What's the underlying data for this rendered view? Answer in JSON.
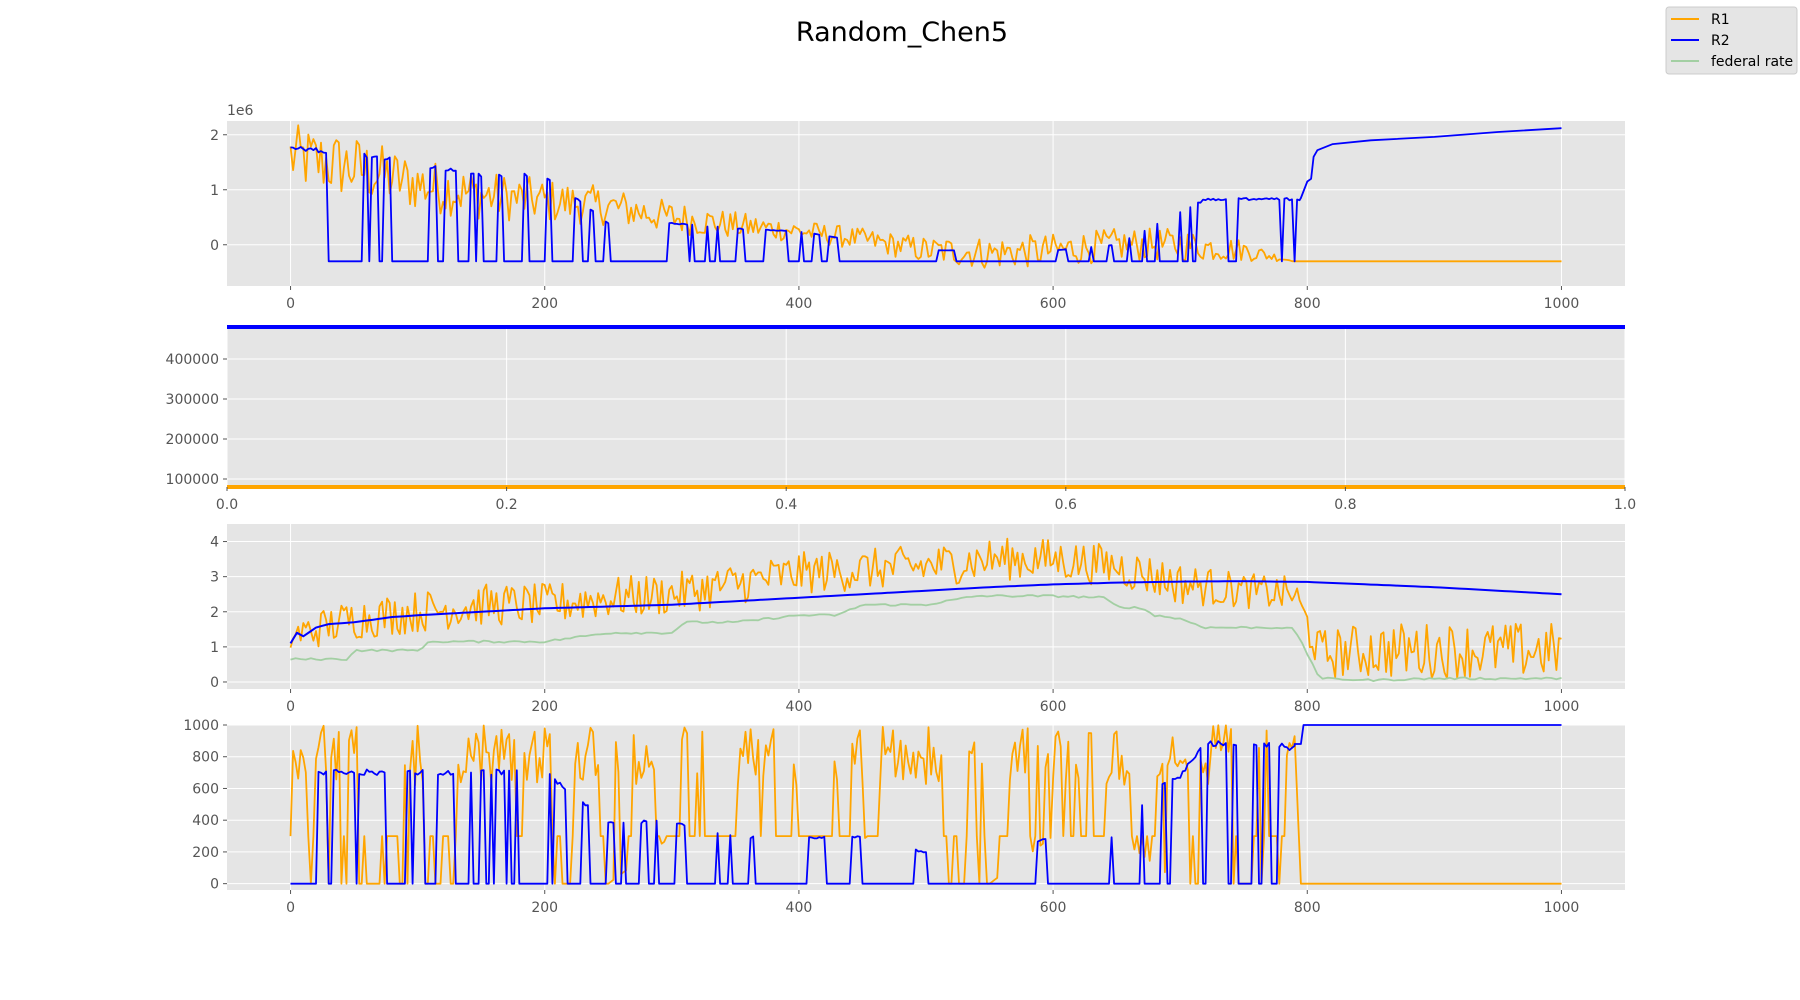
{
  "figure": {
    "title": "Random_Chen5"
  },
  "legend": {
    "placement": "top-right",
    "entries": [
      {
        "label": "R1",
        "color": "#ffa500"
      },
      {
        "label": "R2",
        "color": "#0000ff"
      },
      {
        "label": "federal rate",
        "color": "#a3cfa3"
      }
    ]
  },
  "colors": {
    "R1": "#ffa500",
    "R2": "#0000ff",
    "federal": "#a3cfa3",
    "panel_bg": "#e5e5e5",
    "grid": "#ffffff",
    "tick": "#555555"
  },
  "chart_data": [
    {
      "type": "line",
      "panel": 1,
      "xlim": [
        -50,
        1050
      ],
      "ylim": [
        -0.75,
        2.25
      ],
      "offset_text": "1e6",
      "xticks": [
        0,
        200,
        400,
        600,
        800,
        1000
      ],
      "yticks": [
        0,
        1,
        2
      ],
      "xtick_labels": [
        "0",
        "200",
        "400",
        "600",
        "800",
        "1000"
      ],
      "ytick_labels": [
        "0",
        "1",
        "2"
      ],
      "grid": true,
      "series": [
        {
          "name": "R1",
          "color": "#ffa500",
          "style": "noisy",
          "x": [
            0,
            50,
            100,
            150,
            200,
            250,
            300,
            350,
            400,
            450,
            500,
            550,
            600,
            650,
            700,
            750,
            790,
            800,
            1000
          ],
          "center": [
            1.6,
            1.4,
            1.1,
            0.9,
            0.8,
            0.7,
            0.5,
            0.35,
            0.25,
            0.1,
            -0.1,
            -0.15,
            -0.1,
            0.0,
            0.0,
            -0.1,
            -0.3,
            -0.3,
            -0.3
          ],
          "amp": [
            0.6,
            0.6,
            0.5,
            0.45,
            0.4,
            0.35,
            0.3,
            0.25,
            0.2,
            0.2,
            0.25,
            0.3,
            0.3,
            0.3,
            0.3,
            0.2,
            0.0,
            0.0,
            0.0
          ]
        },
        {
          "name": "R2",
          "color": "#0000ff",
          "style": "binary",
          "base": -0.3,
          "x": [
            0,
            50,
            100,
            150,
            200,
            250,
            300,
            350,
            400,
            450,
            500,
            550,
            600,
            650,
            700,
            720,
            750,
            780,
            795
          ],
          "high": [
            1.8,
            1.7,
            1.5,
            1.3,
            1.3,
            0.4,
            0.4,
            0.3,
            0.25,
            0.05,
            -0.1,
            -0.1,
            -0.1,
            0.0,
            0.6,
            0.85,
            0.85,
            0.85,
            0.85
          ],
          "prob": [
            0.55,
            0.5,
            0.45,
            0.45,
            0.4,
            0.25,
            0.25,
            0.25,
            0.2,
            0.15,
            0.1,
            0.1,
            0.12,
            0.15,
            0.6,
            0.7,
            0.7,
            0.6,
            1.0
          ],
          "tail_x": [
            795,
            800,
            803,
            805,
            808,
            820,
            850,
            900,
            950,
            1000
          ],
          "tail_y": [
            0.85,
            1.15,
            1.2,
            1.6,
            1.72,
            1.83,
            1.9,
            1.96,
            2.05,
            2.12
          ]
        }
      ]
    },
    {
      "type": "line",
      "panel": 2,
      "xlim": [
        0,
        1
      ],
      "ylim": [
        80000,
        480000
      ],
      "xticks": [
        0.0,
        0.2,
        0.4,
        0.6,
        0.8,
        1.0
      ],
      "yticks": [
        100000,
        200000,
        300000,
        400000
      ],
      "xtick_labels": [
        "0.0",
        "0.2",
        "0.4",
        "0.6",
        "0.8",
        "1.0"
      ],
      "ytick_labels": [
        "100000",
        "200000",
        "300000",
        "400000"
      ],
      "grid": true,
      "series": [
        {
          "name": "R2",
          "color": "#0000ff",
          "style": "constant",
          "value": 480000
        },
        {
          "name": "R1",
          "color": "#ffa500",
          "style": "constant",
          "value": 80000
        }
      ]
    },
    {
      "type": "line",
      "panel": 3,
      "xlim": [
        -50,
        1050
      ],
      "ylim": [
        -0.2,
        4.5
      ],
      "xticks": [
        0,
        200,
        400,
        600,
        800,
        1000
      ],
      "yticks": [
        0,
        1,
        2,
        3,
        4
      ],
      "xtick_labels": [
        "0",
        "200",
        "400",
        "600",
        "800",
        "1000"
      ],
      "ytick_labels": [
        "0",
        "1",
        "2",
        "3",
        "4"
      ],
      "grid": true,
      "series": [
        {
          "name": "R1",
          "color": "#ffa500",
          "style": "noisy",
          "x": [
            0,
            50,
            100,
            150,
            200,
            250,
            300,
            350,
            400,
            450,
            500,
            550,
            600,
            650,
            700,
            750,
            790,
            810,
            850,
            900,
            1000
          ],
          "center": [
            1.3,
            1.8,
            2.0,
            2.2,
            2.2,
            2.4,
            2.5,
            2.8,
            3.1,
            3.2,
            3.3,
            3.5,
            3.5,
            3.3,
            2.8,
            2.6,
            2.5,
            0.8,
            0.9,
            0.9,
            0.9
          ],
          "amp": [
            0.5,
            0.6,
            0.6,
            0.6,
            0.6,
            0.6,
            0.6,
            0.6,
            0.6,
            0.6,
            0.6,
            0.6,
            0.6,
            0.6,
            0.6,
            0.5,
            0.5,
            0.7,
            0.8,
            0.8,
            0.8
          ]
        },
        {
          "name": "federal rate",
          "color": "#a3cfa3",
          "style": "steps",
          "x": [
            0,
            45,
            50,
            100,
            110,
            170,
            200,
            250,
            280,
            300,
            310,
            350,
            400,
            430,
            450,
            500,
            540,
            600,
            640,
            650,
            670,
            680,
            700,
            720,
            780,
            790,
            800,
            810,
            850,
            900,
            1000
          ],
          "y": [
            0.65,
            0.65,
            0.9,
            0.9,
            1.15,
            1.15,
            1.15,
            1.4,
            1.4,
            1.4,
            1.7,
            1.7,
            1.9,
            1.9,
            2.2,
            2.2,
            2.45,
            2.45,
            2.4,
            2.15,
            2.1,
            1.9,
            1.8,
            1.55,
            1.55,
            1.5,
            0.8,
            0.1,
            0.05,
            0.1,
            0.1
          ]
        },
        {
          "name": "R2",
          "color": "#0000ff",
          "style": "smooth",
          "x": [
            0,
            5,
            10,
            20,
            30,
            50,
            80,
            100,
            150,
            200,
            250,
            300,
            350,
            400,
            450,
            500,
            550,
            600,
            650,
            700,
            750,
            800,
            900,
            1000
          ],
          "y": [
            1.1,
            1.4,
            1.3,
            1.55,
            1.65,
            1.7,
            1.85,
            1.9,
            2.0,
            2.1,
            2.15,
            2.2,
            2.3,
            2.4,
            2.5,
            2.6,
            2.7,
            2.78,
            2.83,
            2.86,
            2.87,
            2.85,
            2.7,
            2.5
          ]
        }
      ]
    },
    {
      "type": "line",
      "panel": 4,
      "xlim": [
        -50,
        1050
      ],
      "ylim": [
        -40,
        1000
      ],
      "xticks": [
        0,
        200,
        400,
        600,
        800,
        1000
      ],
      "yticks": [
        0,
        200,
        400,
        600,
        800,
        1000
      ],
      "xtick_labels": [
        "0",
        "200",
        "400",
        "600",
        "800",
        "1000"
      ],
      "ytick_labels": [
        "0",
        "200",
        "400",
        "600",
        "800",
        "1000"
      ],
      "grid": true,
      "series": [
        {
          "name": "R1",
          "color": "#ffa500",
          "style": "binary_mixed",
          "base": 300,
          "x": [
            0,
            50,
            100,
            150,
            200,
            250,
            300,
            350,
            400,
            450,
            500,
            550,
            600,
            650,
            700,
            750,
            790
          ],
          "high": [
            1000,
            1000,
            1000,
            1000,
            1000,
            1000,
            1000,
            1000,
            1000,
            1000,
            1000,
            1000,
            1000,
            1000,
            1000,
            1000,
            1000
          ],
          "low": [
            0,
            0,
            0,
            0,
            0,
            0,
            300,
            300,
            300,
            300,
            0,
            0,
            300,
            300,
            0,
            0,
            0
          ],
          "prob": [
            0.55,
            0.55,
            0.55,
            0.55,
            0.55,
            0.55,
            0.55,
            0.55,
            0.55,
            0.55,
            0.55,
            0.55,
            0.55,
            0.55,
            0.55,
            0.55,
            0.5
          ],
          "tail_x": [
            795,
            1000
          ],
          "tail_y": [
            0,
            0
          ]
        },
        {
          "name": "R2",
          "color": "#0000ff",
          "style": "binary",
          "base": 0,
          "x": [
            0,
            50,
            100,
            150,
            200,
            250,
            300,
            350,
            400,
            450,
            500,
            550,
            600,
            650,
            680,
            700,
            720,
            750,
            790
          ],
          "high": [
            720,
            720,
            720,
            720,
            720,
            400,
            400,
            300,
            300,
            300,
            200,
            200,
            300,
            300,
            600,
            700,
            900,
            900,
            880
          ],
          "prob": [
            0.55,
            0.5,
            0.45,
            0.45,
            0.4,
            0.25,
            0.25,
            0.25,
            0.2,
            0.15,
            0.1,
            0.1,
            0.12,
            0.15,
            0.6,
            0.65,
            0.7,
            0.7,
            1.0
          ],
          "tail_x": [
            790,
            795,
            797,
            1000
          ],
          "tail_y": [
            880,
            880,
            1000,
            1000
          ]
        }
      ]
    }
  ]
}
